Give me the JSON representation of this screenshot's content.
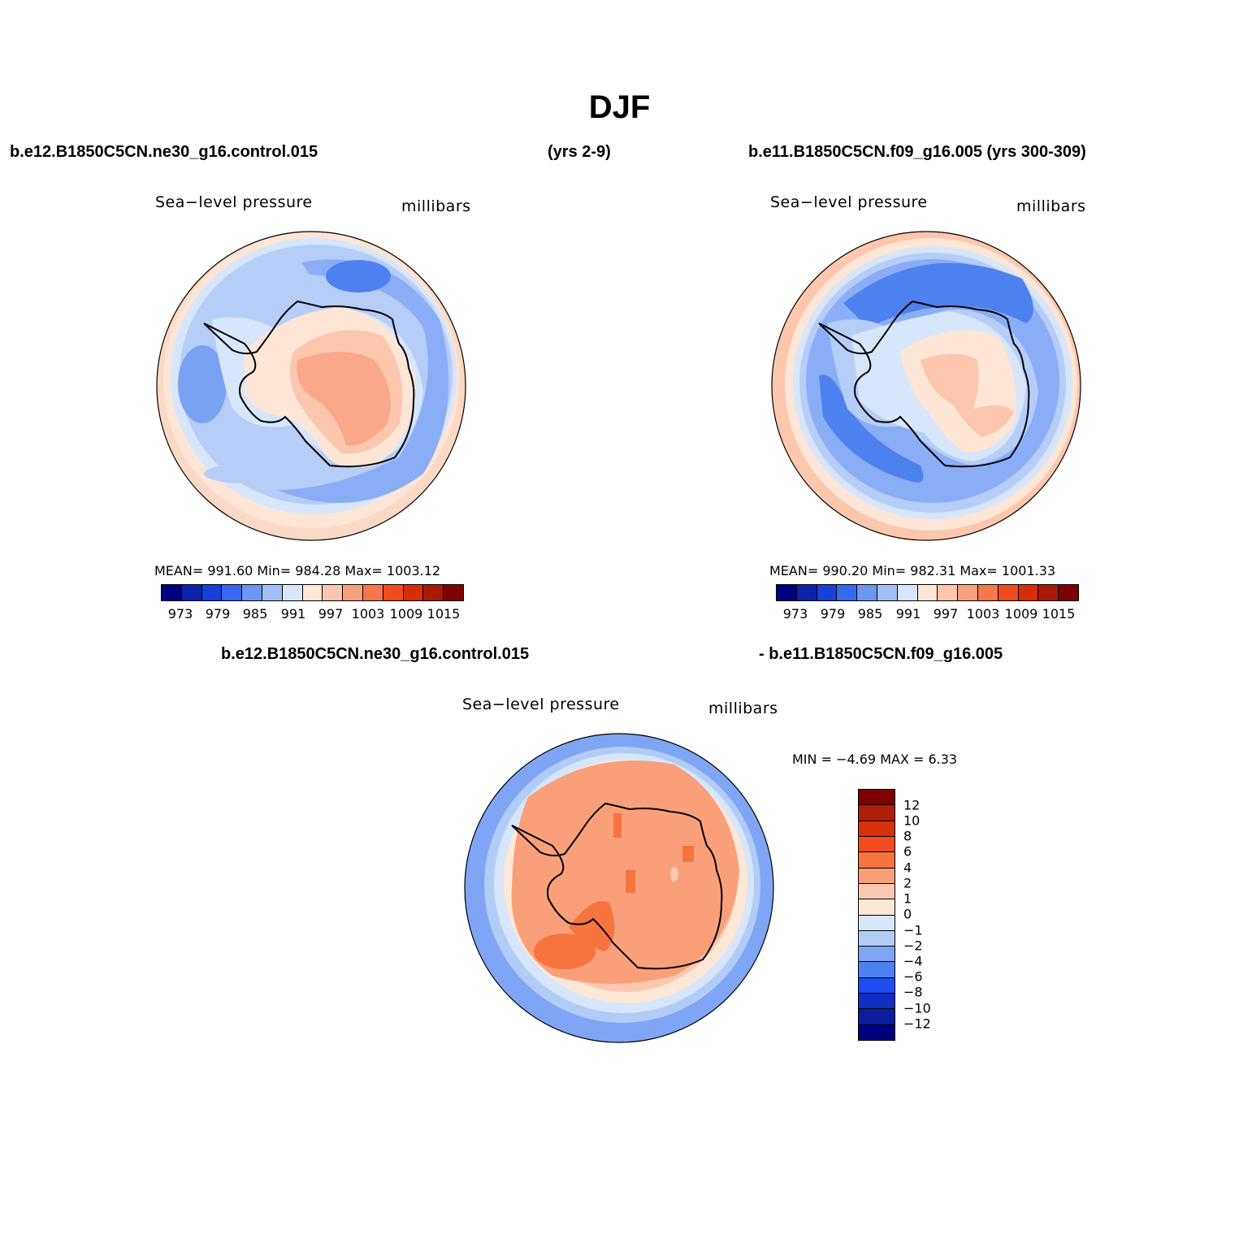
{
  "title": "DJF",
  "header": {
    "case_left": "b.e12.B1850C5CN.ne30_g16.control.015",
    "years_left": "(yrs 2-9)",
    "case_right": "b.e11.B1850C5CN.f09_g16.005 (yrs 300-309)"
  },
  "panels": [
    {
      "field": "Sea−level pressure",
      "units": "millibars",
      "stats": "MEAN= 991.60   Min= 984.28   Max= 1003.12"
    },
    {
      "field": "Sea−level pressure",
      "units": "millibars",
      "stats": "MEAN= 990.20   Min= 982.31   Max= 1001.33"
    }
  ],
  "diff_panel": {
    "case_a": "b.e12.B1850C5CN.ne30_g16.control.015",
    "case_b": "- b.e11.B1850C5CN.f09_g16.005",
    "field": "Sea−level pressure",
    "units": "millibars",
    "minmax": "MIN =   −4.69  MAX =    6.33"
  },
  "colorbar": {
    "colors": [
      "#00007f",
      "#0a23a8",
      "#1640d9",
      "#3668f0",
      "#6b97f2",
      "#a2bff7",
      "#d7e6fb",
      "#fde6d6",
      "#fcc7ac",
      "#f9a07c",
      "#f67749",
      "#f14b20",
      "#d72d0a",
      "#a81a06",
      "#7f0000"
    ],
    "labels": [
      "973",
      "979",
      "985",
      "991",
      "997",
      "1003",
      "1009",
      "1015"
    ]
  },
  "diff_colorbar": {
    "colors": [
      "#7f0000",
      "#ad1d07",
      "#d83109",
      "#f24b1e",
      "#f7743e",
      "#f9a07a",
      "#fcc9b0",
      "#fde7d6",
      "#d7e6fb",
      "#b2ccf8",
      "#7fa6f4",
      "#4e81f0",
      "#1f4ff2",
      "#0f2ec2",
      "#0a1e9e",
      "#00007f"
    ],
    "labels": [
      "12",
      "10",
      "8",
      "6",
      "4",
      "2",
      "1",
      "0",
      "−1",
      "−2",
      "−4",
      "−6",
      "−8",
      "−10",
      "−12"
    ]
  }
}
